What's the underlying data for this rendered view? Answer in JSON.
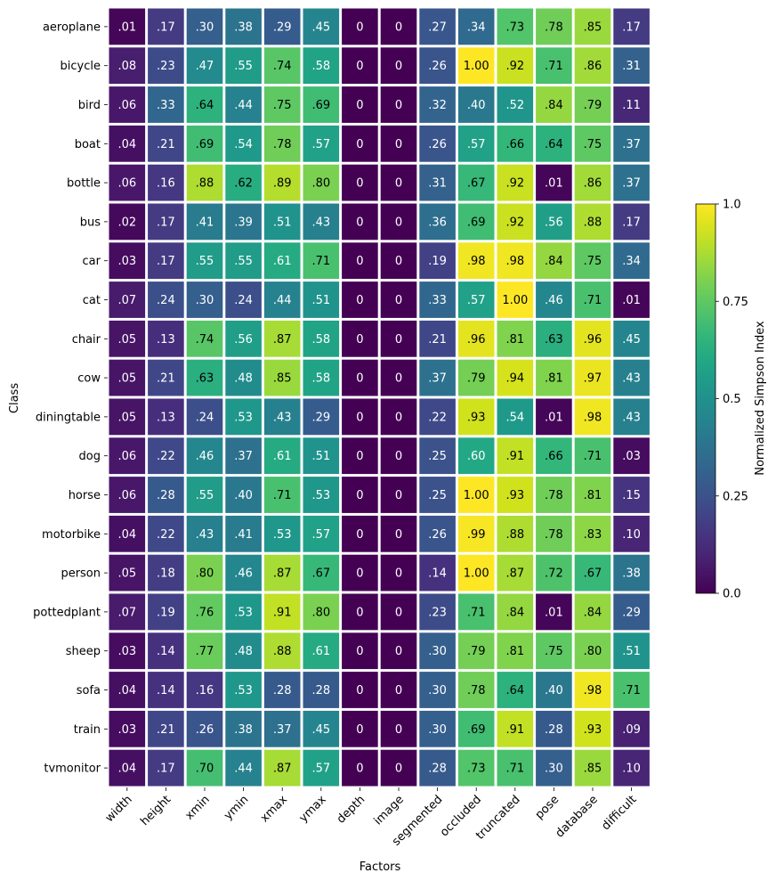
{
  "chart_data": {
    "type": "heatmap",
    "xlabel": "Factors",
    "ylabel": "Class",
    "x_categories": [
      "width",
      "height",
      "xmin",
      "ymin",
      "xmax",
      "ymax",
      "depth",
      "image",
      "segmented",
      "occluded",
      "truncated",
      "pose",
      "database",
      "difficult"
    ],
    "y_categories": [
      "aeroplane",
      "bicycle",
      "bird",
      "boat",
      "bottle",
      "bus",
      "car",
      "cat",
      "chair",
      "cow",
      "diningtable",
      "dog",
      "horse",
      "motorbike",
      "person",
      "pottedplant",
      "sheep",
      "sofa",
      "train",
      "tvmonitor"
    ],
    "values": [
      [
        0.01,
        0.17,
        0.3,
        0.38,
        0.29,
        0.45,
        0,
        0,
        0.27,
        0.34,
        0.73,
        0.78,
        0.85,
        0.17
      ],
      [
        0.08,
        0.23,
        0.47,
        0.55,
        0.74,
        0.58,
        0,
        0,
        0.26,
        1.0,
        0.92,
        0.71,
        0.86,
        0.31
      ],
      [
        0.06,
        0.33,
        0.64,
        0.44,
        0.75,
        0.69,
        0,
        0,
        0.32,
        0.4,
        0.52,
        0.84,
        0.79,
        0.11
      ],
      [
        0.04,
        0.21,
        0.69,
        0.54,
        0.78,
        0.57,
        0,
        0,
        0.26,
        0.57,
        0.66,
        0.64,
        0.75,
        0.37
      ],
      [
        0.06,
        0.16,
        0.88,
        0.62,
        0.89,
        0.8,
        0,
        0,
        0.31,
        0.67,
        0.92,
        0.01,
        0.86,
        0.37
      ],
      [
        0.02,
        0.17,
        0.41,
        0.39,
        0.51,
        0.43,
        0,
        0,
        0.36,
        0.69,
        0.92,
        0.56,
        0.88,
        0.17
      ],
      [
        0.03,
        0.17,
        0.55,
        0.55,
        0.61,
        0.71,
        0,
        0,
        0.19,
        0.98,
        0.98,
        0.84,
        0.75,
        0.34
      ],
      [
        0.07,
        0.24,
        0.3,
        0.24,
        0.44,
        0.51,
        0,
        0,
        0.33,
        0.57,
        1.0,
        0.46,
        0.71,
        0.01
      ],
      [
        0.05,
        0.13,
        0.74,
        0.56,
        0.87,
        0.58,
        0,
        0,
        0.21,
        0.96,
        0.81,
        0.63,
        0.96,
        0.45
      ],
      [
        0.05,
        0.21,
        0.63,
        0.48,
        0.85,
        0.58,
        0,
        0,
        0.37,
        0.79,
        0.94,
        0.81,
        0.97,
        0.43
      ],
      [
        0.05,
        0.13,
        0.24,
        0.53,
        0.43,
        0.29,
        0,
        0,
        0.22,
        0.93,
        0.54,
        0.01,
        0.98,
        0.43
      ],
      [
        0.06,
        0.22,
        0.46,
        0.37,
        0.61,
        0.51,
        0,
        0,
        0.25,
        0.6,
        0.91,
        0.66,
        0.71,
        0.03
      ],
      [
        0.06,
        0.28,
        0.55,
        0.4,
        0.71,
        0.53,
        0,
        0,
        0.25,
        1.0,
        0.93,
        0.78,
        0.81,
        0.15
      ],
      [
        0.04,
        0.22,
        0.43,
        0.41,
        0.53,
        0.57,
        0,
        0,
        0.26,
        0.99,
        0.88,
        0.78,
        0.83,
        0.1
      ],
      [
        0.05,
        0.18,
        0.8,
        0.46,
        0.87,
        0.67,
        0,
        0,
        0.14,
        1.0,
        0.87,
        0.72,
        0.67,
        0.38
      ],
      [
        0.07,
        0.19,
        0.76,
        0.53,
        0.91,
        0.8,
        0,
        0,
        0.23,
        0.71,
        0.84,
        0.01,
        0.84,
        0.29
      ],
      [
        0.03,
        0.14,
        0.77,
        0.48,
        0.88,
        0.61,
        0,
        0,
        0.3,
        0.79,
        0.81,
        0.75,
        0.8,
        0.51
      ],
      [
        0.04,
        0.14,
        0.16,
        0.53,
        0.28,
        0.28,
        0,
        0,
        0.3,
        0.78,
        0.64,
        0.4,
        0.98,
        0.71
      ],
      [
        0.03,
        0.21,
        0.26,
        0.38,
        0.37,
        0.45,
        0,
        0,
        0.3,
        0.69,
        0.91,
        0.28,
        0.93,
        0.09
      ],
      [
        0.04,
        0.17,
        0.7,
        0.44,
        0.87,
        0.57,
        0,
        0,
        0.28,
        0.73,
        0.71,
        0.3,
        0.85,
        0.1
      ]
    ],
    "cell_labels": [
      [
        ".01",
        ".17",
        ".30",
        ".38",
        ".29",
        ".45",
        "0",
        "0",
        ".27",
        ".34",
        ".73",
        ".78",
        ".85",
        ".17"
      ],
      [
        ".08",
        ".23",
        ".47",
        ".55",
        ".74",
        ".58",
        "0",
        "0",
        ".26",
        "1.00",
        ".92",
        ".71",
        ".86",
        ".31"
      ],
      [
        ".06",
        ".33",
        ".64",
        ".44",
        ".75",
        ".69",
        "0",
        "0",
        ".32",
        ".40",
        ".52",
        ".84",
        ".79",
        ".11"
      ],
      [
        ".04",
        ".21",
        ".69",
        ".54",
        ".78",
        ".57",
        "0",
        "0",
        ".26",
        ".57",
        ".66",
        ".64",
        ".75",
        ".37"
      ],
      [
        ".06",
        ".16",
        ".88",
        ".62",
        ".89",
        ".80",
        "0",
        "0",
        ".31",
        ".67",
        ".92",
        ".01",
        ".86",
        ".37"
      ],
      [
        ".02",
        ".17",
        ".41",
        ".39",
        ".51",
        ".43",
        "0",
        "0",
        ".36",
        ".69",
        ".92",
        ".56",
        ".88",
        ".17"
      ],
      [
        ".03",
        ".17",
        ".55",
        ".55",
        ".61",
        ".71",
        "0",
        "0",
        ".19",
        ".98",
        ".98",
        ".84",
        ".75",
        ".34"
      ],
      [
        ".07",
        ".24",
        ".30",
        ".24",
        ".44",
        ".51",
        "0",
        "0",
        ".33",
        ".57",
        "1.00",
        ".46",
        ".71",
        ".01"
      ],
      [
        ".05",
        ".13",
        ".74",
        ".56",
        ".87",
        ".58",
        "0",
        "0",
        ".21",
        ".96",
        ".81",
        ".63",
        ".96",
        ".45"
      ],
      [
        ".05",
        ".21",
        ".63",
        ".48",
        ".85",
        ".58",
        "0",
        "0",
        ".37",
        ".79",
        ".94",
        ".81",
        ".97",
        ".43"
      ],
      [
        ".05",
        ".13",
        ".24",
        ".53",
        ".43",
        ".29",
        "0",
        "0",
        ".22",
        ".93",
        ".54",
        ".01",
        ".98",
        ".43"
      ],
      [
        ".06",
        ".22",
        ".46",
        ".37",
        ".61",
        ".51",
        "0",
        "0",
        ".25",
        ".60",
        ".91",
        ".66",
        ".71",
        ".03"
      ],
      [
        ".06",
        ".28",
        ".55",
        ".40",
        ".71",
        ".53",
        "0",
        "0",
        ".25",
        "1.00",
        ".93",
        ".78",
        ".81",
        ".15"
      ],
      [
        ".04",
        ".22",
        ".43",
        ".41",
        ".53",
        ".57",
        "0",
        "0",
        ".26",
        ".99",
        ".88",
        ".78",
        ".83",
        ".10"
      ],
      [
        ".05",
        ".18",
        ".80",
        ".46",
        ".87",
        ".67",
        "0",
        "0",
        ".14",
        "1.00",
        ".87",
        ".72",
        ".67",
        ".38"
      ],
      [
        ".07",
        ".19",
        ".76",
        ".53",
        ".91",
        ".80",
        "0",
        "0",
        ".23",
        ".71",
        ".84",
        ".01",
        ".84",
        ".29"
      ],
      [
        ".03",
        ".14",
        ".77",
        ".48",
        ".88",
        ".61",
        "0",
        "0",
        ".30",
        ".79",
        ".81",
        ".75",
        ".80",
        ".51"
      ],
      [
        ".04",
        ".14",
        ".16",
        ".53",
        ".28",
        ".28",
        "0",
        "0",
        ".30",
        ".78",
        ".64",
        ".40",
        ".98",
        ".71"
      ],
      [
        ".03",
        ".21",
        ".26",
        ".38",
        ".37",
        ".45",
        "0",
        "0",
        ".30",
        ".69",
        ".91",
        ".28",
        ".93",
        ".09"
      ],
      [
        ".04",
        ".17",
        ".70",
        ".44",
        ".87",
        ".57",
        "0",
        "0",
        ".28",
        ".73",
        ".71",
        ".30",
        ".85",
        ".10"
      ]
    ],
    "colormap": "viridis",
    "vmin": 0,
    "vmax": 1,
    "colorbar": {
      "label": "Normalized Simpson Index",
      "ticks": [
        0,
        0.25,
        0.5,
        0.75,
        1
      ],
      "tick_labels": [
        "0.0",
        "0.25",
        "0.5",
        "0.75",
        "1.0"
      ],
      "placement": "right"
    },
    "cell_separator_color": "#ffffff",
    "annotation_colors": {
      "light": "#ffffff",
      "dark": "#000000"
    }
  }
}
